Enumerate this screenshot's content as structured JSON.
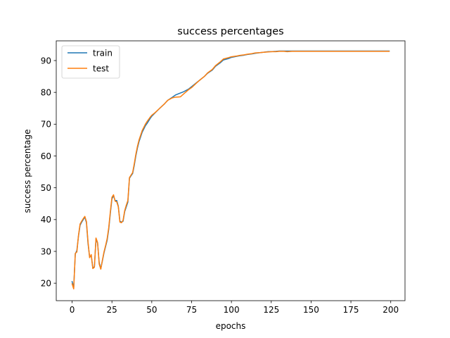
{
  "chart_data": {
    "type": "line",
    "title": "success percentages",
    "xlabel": "epochs",
    "ylabel": "success percentage",
    "xlim": [
      -9.95,
      208.95
    ],
    "ylim": [
      14.5,
      96.2
    ],
    "xticks": [
      0,
      25,
      50,
      75,
      100,
      125,
      150,
      175,
      200
    ],
    "yticks": [
      20,
      30,
      40,
      50,
      60,
      70,
      80,
      90
    ],
    "grid": false,
    "legend_position": "upper left",
    "series": [
      {
        "name": "train",
        "color": "#1f77b4",
        "x": [
          0,
          1,
          2,
          3,
          4,
          5,
          6,
          7,
          8,
          9,
          10,
          11,
          12,
          13,
          14,
          15,
          16,
          17,
          18,
          19,
          20,
          21,
          22,
          23,
          24,
          25,
          26,
          27,
          28,
          29,
          30,
          31,
          32,
          33,
          34,
          35,
          36,
          37,
          38,
          39,
          40,
          41,
          42,
          43,
          44,
          45,
          46,
          47,
          48,
          49,
          50,
          52,
          55,
          58,
          60,
          63,
          65,
          68,
          70,
          73,
          75,
          78,
          80,
          83,
          85,
          88,
          90,
          93,
          95,
          98,
          100,
          103,
          105,
          108,
          110,
          113,
          115,
          118,
          120,
          123,
          125,
          128,
          130,
          133,
          135,
          138,
          140,
          143,
          145,
          148,
          150,
          155,
          160,
          165,
          170,
          175,
          180,
          185,
          190,
          195,
          199
        ],
        "y": [
          20.5,
          18.6,
          29.2,
          30.3,
          34.8,
          38.2,
          39.2,
          40.0,
          40.8,
          39.0,
          32.5,
          28.2,
          28.8,
          24.8,
          25.2,
          34.0,
          32.5,
          26.5,
          24.5,
          27.0,
          29.5,
          31.5,
          33.5,
          37.0,
          42.0,
          46.5,
          47.5,
          46.0,
          46.0,
          44.2,
          39.5,
          39.2,
          39.5,
          42.5,
          44.0,
          45.5,
          53.0,
          53.8,
          54.5,
          57.0,
          60.0,
          62.5,
          64.5,
          66.0,
          67.5,
          68.5,
          69.5,
          70.2,
          71.0,
          71.8,
          72.5,
          73.5,
          75.0,
          76.4,
          77.5,
          78.5,
          79.2,
          79.8,
          80.2,
          81.0,
          81.8,
          83.0,
          83.8,
          85.0,
          86.0,
          87.0,
          88.2,
          89.3,
          90.2,
          90.6,
          91.0,
          91.3,
          91.5,
          91.7,
          91.9,
          92.1,
          92.3,
          92.5,
          92.6,
          92.8,
          92.8,
          92.9,
          93.0,
          93.0,
          93.0,
          93.0,
          93.0,
          93.0,
          93.0,
          93.0,
          93.0,
          93.0,
          93.0,
          93.0,
          93.0,
          93.0,
          93.0,
          93.0,
          93.0,
          93.0,
          93.0
        ],
        "_note": "x values 0..50 are epochs; after 50 the sampling continues at listed epochs"
      },
      {
        "name": "test",
        "color": "#ff7f0e",
        "x": [
          0,
          1,
          2,
          3,
          4,
          5,
          6,
          7,
          8,
          9,
          10,
          11,
          12,
          13,
          14,
          15,
          16,
          17,
          18,
          19,
          20,
          21,
          22,
          23,
          24,
          25,
          26,
          27,
          28,
          29,
          30,
          31,
          32,
          33,
          34,
          35,
          36,
          37,
          38,
          39,
          40,
          41,
          42,
          43,
          44,
          45,
          46,
          47,
          48,
          49,
          50,
          52,
          55,
          58,
          60,
          63,
          65,
          68,
          70,
          73,
          75,
          78,
          80,
          83,
          85,
          88,
          90,
          93,
          95,
          98,
          100,
          103,
          105,
          108,
          110,
          113,
          115,
          118,
          120,
          123,
          125,
          128,
          130,
          133,
          135,
          138,
          140,
          143,
          145,
          148,
          150,
          155,
          160,
          165,
          170,
          175,
          180,
          185,
          190,
          195,
          199
        ],
        "y": [
          19.8,
          18.2,
          29.4,
          29.8,
          35.0,
          38.6,
          39.5,
          40.3,
          41.0,
          39.4,
          33.0,
          28.0,
          29.0,
          24.6,
          25.0,
          34.2,
          32.8,
          26.0,
          24.4,
          27.2,
          29.8,
          31.8,
          34.0,
          37.5,
          42.5,
          47.0,
          47.8,
          45.8,
          45.6,
          44.0,
          39.2,
          39.0,
          39.8,
          42.8,
          44.5,
          46.0,
          53.2,
          54.0,
          54.8,
          57.5,
          60.5,
          63.0,
          65.0,
          66.5,
          68.0,
          69.0,
          70.0,
          70.8,
          71.5,
          72.2,
          72.8,
          73.6,
          75.0,
          76.4,
          77.5,
          78.3,
          78.5,
          78.6,
          79.5,
          80.8,
          81.5,
          82.9,
          83.8,
          85.0,
          86.1,
          87.2,
          88.4,
          89.6,
          90.5,
          90.9,
          91.2,
          91.4,
          91.6,
          91.8,
          92.0,
          92.2,
          92.4,
          92.5,
          92.6,
          92.7,
          92.8,
          92.8,
          92.9,
          92.9,
          92.8,
          92.9,
          92.9,
          92.9,
          92.9,
          92.9,
          92.9,
          92.9,
          92.9,
          92.9,
          92.9,
          92.9,
          92.9,
          92.9,
          92.9,
          92.9,
          92.9
        ]
      }
    ]
  }
}
